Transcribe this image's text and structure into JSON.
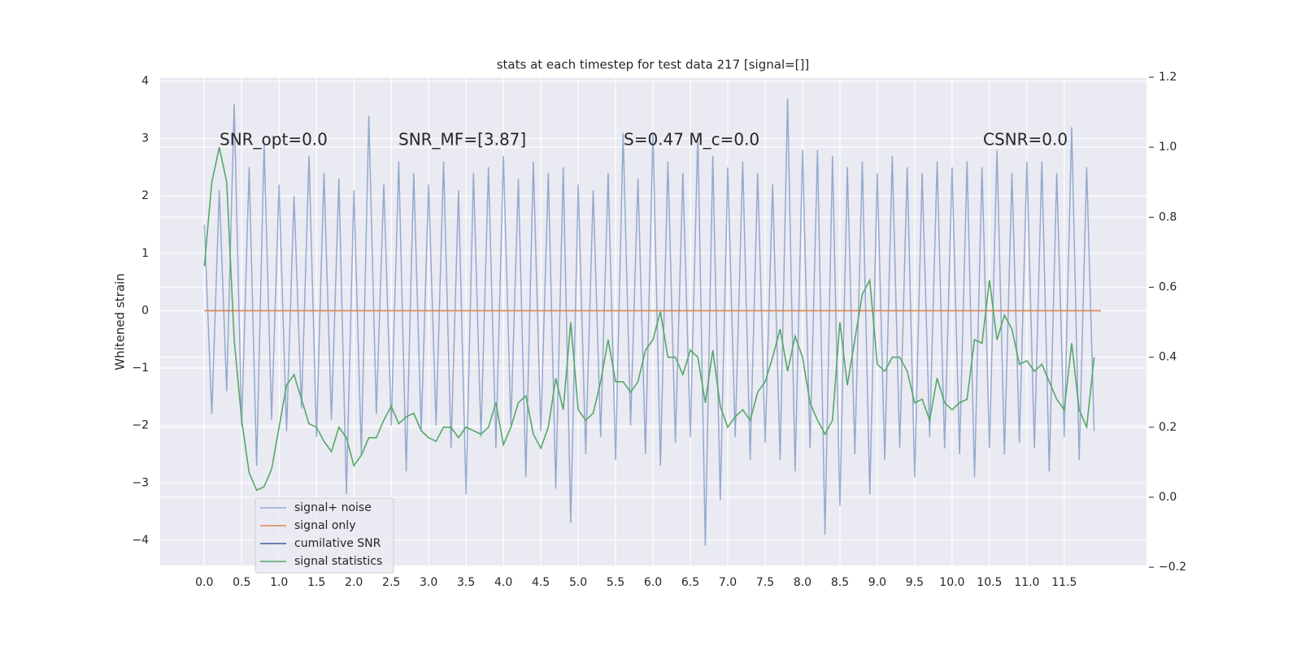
{
  "chart_data": {
    "type": "line",
    "title": "stats at each timestep for test data 217 [signal=[]]",
    "y_label": "Whitened strain",
    "annotations": [
      "SNR_opt=0.0",
      "SNR_MF=[3.87]",
      "S=0.47   M_c=0.0",
      "CSNR=0.0"
    ],
    "xlim": [
      -0.59,
      12.6
    ],
    "ylim": [
      -4.44,
      4.07
    ],
    "y2lim": [
      -0.195,
      1.2
    ],
    "xticks": [
      {
        "value": 0,
        "label": "0.0"
      },
      {
        "value": 0.5,
        "label": "0.5"
      },
      {
        "value": 1,
        "label": "1.0"
      },
      {
        "value": 1.5,
        "label": "1.5"
      },
      {
        "value": 2,
        "label": "2.0"
      },
      {
        "value": 2.5,
        "label": "2.5"
      },
      {
        "value": 3,
        "label": "3.0"
      },
      {
        "value": 3.5,
        "label": "3.5"
      },
      {
        "value": 4,
        "label": "4.0"
      },
      {
        "value": 4.5,
        "label": "4.5"
      },
      {
        "value": 5,
        "label": "5.0"
      },
      {
        "value": 5.5,
        "label": "5.5"
      },
      {
        "value": 6,
        "label": "6.0"
      },
      {
        "value": 6.5,
        "label": "6.5"
      },
      {
        "value": 7,
        "label": "7.0"
      },
      {
        "value": 7.5,
        "label": "7.5"
      },
      {
        "value": 8,
        "label": "8.0"
      },
      {
        "value": 8.5,
        "label": "8.5"
      },
      {
        "value": 9,
        "label": "9.0"
      },
      {
        "value": 9.5,
        "label": "9.5"
      },
      {
        "value": 10,
        "label": "10.0"
      },
      {
        "value": 10.5,
        "label": "10.5"
      },
      {
        "value": 11,
        "label": "11.0"
      },
      {
        "value": 11.5,
        "label": "11.5"
      }
    ],
    "yticks": [
      {
        "value": -4,
        "label": "−4"
      },
      {
        "value": -3,
        "label": "−3"
      },
      {
        "value": -2,
        "label": "−2"
      },
      {
        "value": -1,
        "label": "−1"
      },
      0,
      1,
      2,
      3,
      4
    ],
    "y2ticks": [
      {
        "value": -0.2,
        "label": "−0.2"
      },
      {
        "value": 0,
        "label": "0.0"
      },
      0.2,
      0.4,
      0.6,
      0.8,
      {
        "value": 1,
        "label": "1.0"
      },
      1.2
    ],
    "grid": true,
    "legend": "lower left",
    "x": [
      0,
      0.1,
      0.2,
      0.3,
      0.4,
      0.5,
      0.6,
      0.7,
      0.8,
      0.9,
      1,
      1.1,
      1.2,
      1.3,
      1.4,
      1.5,
      1.6,
      1.7,
      1.8,
      1.9,
      2,
      2.1,
      2.2,
      2.3,
      2.4,
      2.5,
      2.6,
      2.7,
      2.8,
      2.9,
      3,
      3.1,
      3.2,
      3.3,
      3.4,
      3.5,
      3.6,
      3.7,
      3.8,
      3.9,
      4,
      4.1,
      4.2,
      4.3,
      4.4,
      4.5,
      4.6,
      4.7,
      4.8,
      4.9,
      5,
      5.1,
      5.2,
      5.3,
      5.4,
      5.5,
      5.6,
      5.7,
      5.8,
      5.9,
      6,
      6.1,
      6.2,
      6.3,
      6.4,
      6.5,
      6.6,
      6.7,
      6.8,
      6.9,
      7,
      7.1,
      7.2,
      7.3,
      7.4,
      7.5,
      7.6,
      7.7,
      7.8,
      7.9,
      8,
      8.1,
      8.2,
      8.3,
      8.4,
      8.5,
      8.6,
      8.7,
      8.8,
      8.9,
      9,
      9.1,
      9.2,
      9.3,
      9.4,
      9.5,
      9.6,
      9.7,
      9.8,
      9.9,
      10,
      10.1,
      10.2,
      10.3,
      10.4,
      10.5,
      10.6,
      10.7,
      10.8,
      10.9,
      11,
      11.1,
      11.2,
      11.3,
      11.4,
      11.5,
      11.6,
      11.7,
      11.8,
      11.9
    ],
    "series": [
      {
        "name": "signal+ noise",
        "color": "#4c72b0",
        "values": [
          1.5,
          -1.8,
          2.1,
          -1.4,
          3.6,
          -2.0,
          2.5,
          -2.7,
          2.9,
          -1.9,
          2.2,
          -2.1,
          2.0,
          -1.7,
          2.7,
          -2.2,
          2.4,
          -1.9,
          2.3,
          -3.2,
          2.1,
          -2.5,
          3.4,
          -1.8,
          2.2,
          -2.0,
          2.6,
          -2.8,
          2.4,
          -2.1,
          2.2,
          -2.0,
          2.6,
          -2.4,
          2.1,
          -3.2,
          2.4,
          -2.2,
          2.5,
          -2.4,
          2.7,
          -2.0,
          2.3,
          -2.9,
          2.6,
          -2.1,
          2.4,
          -3.1,
          2.5,
          -3.7,
          2.2,
          -2.5,
          2.1,
          -2.2,
          2.4,
          -2.6,
          3.1,
          -2.0,
          2.3,
          -2.5,
          3.1,
          -2.7,
          2.6,
          -2.3,
          2.4,
          -2.2,
          3.1,
          -4.1,
          2.7,
          -3.3,
          2.5,
          -2.2,
          2.6,
          -2.6,
          2.4,
          -2.3,
          2.2,
          -2.6,
          3.7,
          -2.8,
          2.8,
          -2.4,
          2.8,
          -3.9,
          2.7,
          -3.4,
          2.5,
          -2.5,
          2.6,
          -3.2,
          2.4,
          -2.6,
          2.7,
          -2.4,
          2.5,
          -2.9,
          2.4,
          -2.2,
          2.6,
          -2.4,
          2.5,
          -2.5,
          2.6,
          -2.9,
          2.5,
          -2.4,
          2.8,
          -2.5,
          2.4,
          -2.3,
          2.6,
          -2.4,
          2.6,
          -2.8,
          2.4,
          -2.2,
          3.2,
          -2.6,
          2.5,
          -2.1
        ]
      },
      {
        "name": "signal only",
        "color": "#dd8452",
        "x": [
          0,
          11.99
        ],
        "values": [
          0,
          0
        ]
      },
      {
        "name": "cumilative SNR",
        "color": "#3a5f9f",
        "x": [],
        "values": []
      },
      {
        "name": "signal statistics",
        "color": "#55a868",
        "axis": "y2",
        "values": [
          0.66,
          0.9,
          1.0,
          0.9,
          0.45,
          0.22,
          0.07,
          0.02,
          0.03,
          0.08,
          0.2,
          0.32,
          0.35,
          0.28,
          0.21,
          0.2,
          0.16,
          0.13,
          0.2,
          0.17,
          0.09,
          0.12,
          0.17,
          0.17,
          0.22,
          0.26,
          0.21,
          0.23,
          0.24,
          0.19,
          0.17,
          0.16,
          0.2,
          0.2,
          0.17,
          0.2,
          0.19,
          0.18,
          0.2,
          0.27,
          0.15,
          0.2,
          0.27,
          0.29,
          0.18,
          0.14,
          0.2,
          0.34,
          0.25,
          0.5,
          0.25,
          0.22,
          0.24,
          0.33,
          0.45,
          0.33,
          0.33,
          0.3,
          0.33,
          0.42,
          0.45,
          0.53,
          0.4,
          0.4,
          0.35,
          0.42,
          0.4,
          0.27,
          0.42,
          0.26,
          0.2,
          0.23,
          0.25,
          0.22,
          0.3,
          0.33,
          0.4,
          0.48,
          0.36,
          0.46,
          0.4,
          0.27,
          0.22,
          0.18,
          0.22,
          0.5,
          0.32,
          0.45,
          0.58,
          0.62,
          0.38,
          0.36,
          0.4,
          0.4,
          0.36,
          0.27,
          0.28,
          0.22,
          0.34,
          0.27,
          0.25,
          0.27,
          0.28,
          0.45,
          0.44,
          0.62,
          0.45,
          0.52,
          0.48,
          0.38,
          0.39,
          0.36,
          0.38,
          0.33,
          0.28,
          0.25,
          0.44,
          0.25,
          0.2,
          0.4
        ]
      }
    ]
  }
}
